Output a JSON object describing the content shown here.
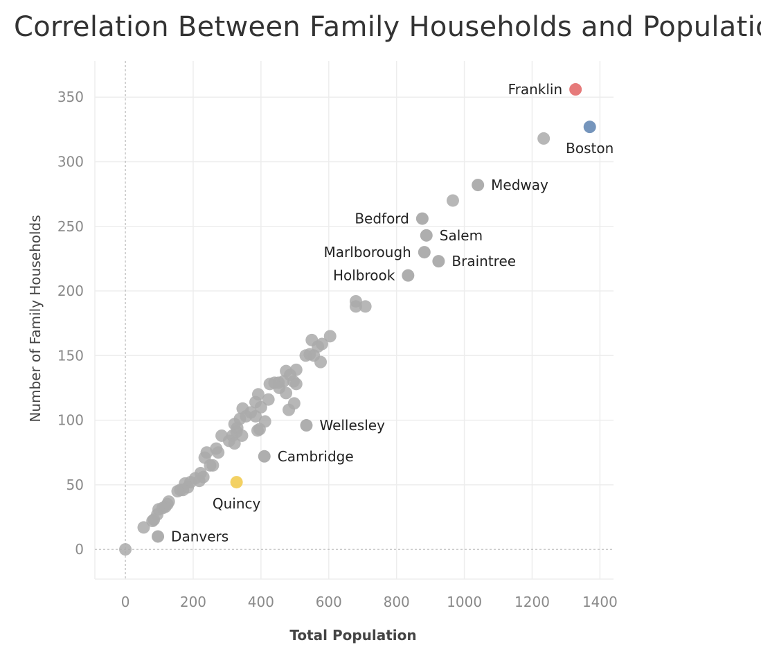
{
  "chart_data": {
    "type": "scatter",
    "title": "Correlation Between Family Households and Population",
    "xlabel": "Total Population",
    "ylabel": "Number of Family Households",
    "xlim": [
      -90,
      1440
    ],
    "ylim": [
      -23,
      378
    ],
    "xticks": [
      0,
      200,
      400,
      600,
      800,
      1000,
      1200,
      1400
    ],
    "yticks": [
      0,
      50,
      100,
      150,
      200,
      250,
      300,
      350
    ],
    "grid": true,
    "colors": {
      "default": "#aaaaaa",
      "Franklin": "#e57373",
      "Boston": "#6e8fb8",
      "Quincy": "#f2cf5b"
    },
    "labeled_points": [
      {
        "name": "Franklin",
        "x": 1328,
        "y": 356,
        "label_side": "left"
      },
      {
        "name": "Boston",
        "x": 1370,
        "y": 327,
        "label_side": "below"
      },
      {
        "name": "Medway",
        "x": 1040,
        "y": 282,
        "label_side": "right"
      },
      {
        "name": "Bedford",
        "x": 876,
        "y": 256,
        "label_side": "left"
      },
      {
        "name": "Salem",
        "x": 888,
        "y": 243,
        "label_side": "right"
      },
      {
        "name": "Marlborough",
        "x": 882,
        "y": 230,
        "label_side": "left"
      },
      {
        "name": "Braintree",
        "x": 924,
        "y": 223,
        "label_side": "right"
      },
      {
        "name": "Holbrook",
        "x": 834,
        "y": 212,
        "label_side": "left"
      },
      {
        "name": "Wellesley",
        "x": 534,
        "y": 96,
        "label_side": "right"
      },
      {
        "name": "Cambridge",
        "x": 410,
        "y": 72,
        "label_side": "right"
      },
      {
        "name": "Quincy",
        "x": 328,
        "y": 52,
        "label_side": "below"
      },
      {
        "name": "Danvers",
        "x": 96,
        "y": 10,
        "label_side": "right"
      }
    ],
    "points": [
      [
        1234,
        318
      ],
      [
        966,
        270
      ],
      [
        680,
        192
      ],
      [
        680,
        188
      ],
      [
        708,
        188
      ],
      [
        604,
        165
      ],
      [
        580,
        159
      ],
      [
        568,
        157
      ],
      [
        550,
        162
      ],
      [
        544,
        151
      ],
      [
        556,
        150
      ],
      [
        532,
        150
      ],
      [
        576,
        145
      ],
      [
        504,
        139
      ],
      [
        474,
        138
      ],
      [
        486,
        135
      ],
      [
        496,
        130
      ],
      [
        466,
        130
      ],
      [
        440,
        129
      ],
      [
        452,
        129
      ],
      [
        426,
        128
      ],
      [
        504,
        128
      ],
      [
        474,
        121
      ],
      [
        454,
        125
      ],
      [
        392,
        120
      ],
      [
        422,
        116
      ],
      [
        384,
        114
      ],
      [
        498,
        113
      ],
      [
        346,
        109
      ],
      [
        400,
        110
      ],
      [
        482,
        108
      ],
      [
        370,
        106
      ],
      [
        356,
        103
      ],
      [
        384,
        103
      ],
      [
        338,
        101
      ],
      [
        322,
        97
      ],
      [
        412,
        99
      ],
      [
        330,
        94
      ],
      [
        328,
        91
      ],
      [
        390,
        92
      ],
      [
        396,
        93
      ],
      [
        284,
        88
      ],
      [
        316,
        88
      ],
      [
        344,
        88
      ],
      [
        306,
        84
      ],
      [
        322,
        82
      ],
      [
        268,
        78
      ],
      [
        274,
        75
      ],
      [
        240,
        75
      ],
      [
        234,
        71
      ],
      [
        250,
        65
      ],
      [
        258,
        65
      ],
      [
        222,
        59
      ],
      [
        230,
        56
      ],
      [
        206,
        55
      ],
      [
        218,
        53
      ],
      [
        192,
        52
      ],
      [
        176,
        51
      ],
      [
        184,
        48
      ],
      [
        162,
        46
      ],
      [
        170,
        46
      ],
      [
        154,
        45
      ],
      [
        128,
        37
      ],
      [
        124,
        35
      ],
      [
        118,
        33
      ],
      [
        110,
        32
      ],
      [
        98,
        31
      ],
      [
        94,
        27
      ],
      [
        84,
        23
      ],
      [
        80,
        22
      ],
      [
        54,
        17
      ],
      [
        0,
        0
      ]
    ]
  }
}
